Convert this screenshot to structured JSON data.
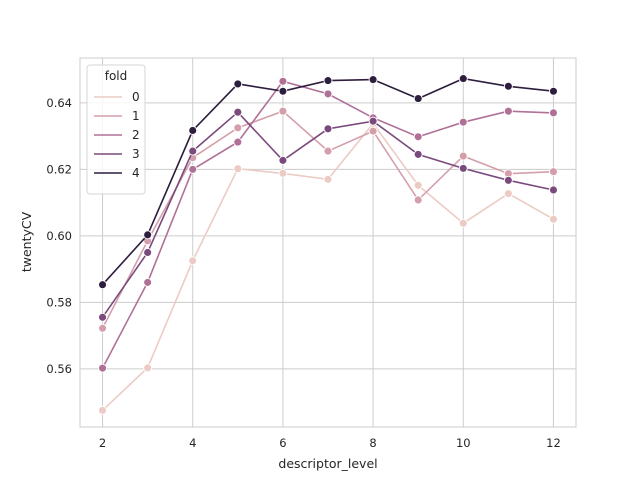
{
  "chart_data": {
    "type": "line",
    "xlabel": "descriptor_level",
    "ylabel": "twentyCV",
    "xlim": [
      1.5,
      12.5
    ],
    "ylim": [
      0.5425,
      0.6535
    ],
    "xticks": [
      2,
      4,
      6,
      8,
      10,
      12
    ],
    "yticks": [
      0.56,
      0.58,
      0.6,
      0.62,
      0.64
    ],
    "ytick_labels": [
      "0.56",
      "0.58",
      "0.60",
      "0.62",
      "0.64"
    ],
    "grid": true,
    "legend": {
      "title": "fold",
      "position": "top-left"
    },
    "x": [
      2,
      3,
      4,
      5,
      6,
      7,
      8,
      9,
      10,
      11,
      12
    ],
    "series": [
      {
        "name": "0",
        "color": "#eccbc4",
        "values": [
          0.5475,
          0.5603,
          0.5925,
          0.6202,
          0.6188,
          0.617,
          0.6338,
          0.6152,
          0.6038,
          0.6127,
          0.605
        ]
      },
      {
        "name": "1",
        "color": "#d49fab",
        "values": [
          0.5722,
          0.5985,
          0.6235,
          0.6325,
          0.6375,
          0.6255,
          0.6315,
          0.6108,
          0.624,
          0.6187,
          0.6193
        ]
      },
      {
        "name": "2",
        "color": "#b07197",
        "values": [
          0.5602,
          0.586,
          0.62,
          0.6282,
          0.6465,
          0.6427,
          0.6355,
          0.6298,
          0.6342,
          0.6375,
          0.637
        ]
      },
      {
        "name": "3",
        "color": "#7a4a7c",
        "values": [
          0.5755,
          0.595,
          0.6255,
          0.6372,
          0.6227,
          0.6322,
          0.6345,
          0.6245,
          0.6203,
          0.6167,
          0.6138
        ]
      },
      {
        "name": "4",
        "color": "#2d1e3e",
        "values": [
          0.5853,
          0.6003,
          0.6317,
          0.6457,
          0.6435,
          0.6467,
          0.647,
          0.6413,
          0.6473,
          0.645,
          0.6435
        ]
      }
    ]
  }
}
